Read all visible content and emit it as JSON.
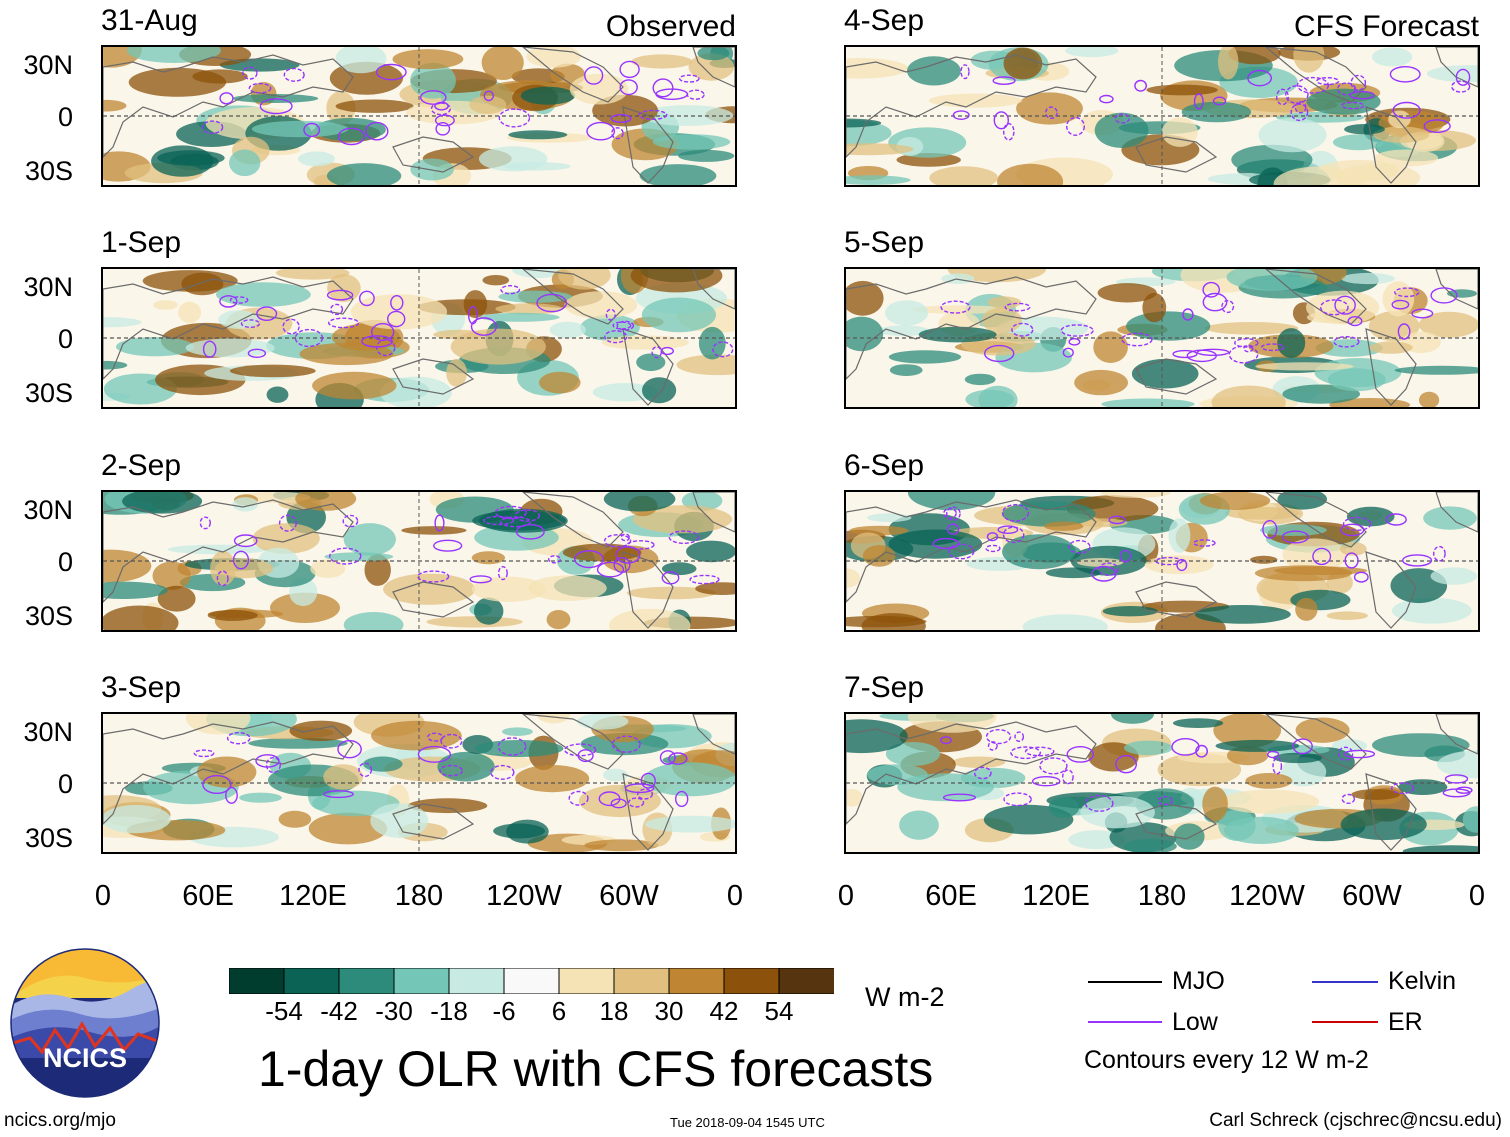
{
  "panels": [
    {
      "id": "p1",
      "title": "31-Aug",
      "tag": "Observed"
    },
    {
      "id": "p2",
      "title": "1-Sep",
      "tag": ""
    },
    {
      "id": "p3",
      "title": "2-Sep",
      "tag": ""
    },
    {
      "id": "p4",
      "title": "3-Sep",
      "tag": ""
    },
    {
      "id": "p5",
      "title": "4-Sep",
      "tag": "CFS Forecast"
    },
    {
      "id": "p6",
      "title": "5-Sep",
      "tag": ""
    },
    {
      "id": "p7",
      "title": "6-Sep",
      "tag": ""
    },
    {
      "id": "p8",
      "title": "7-Sep",
      "tag": ""
    }
  ],
  "lat_ticks": [
    "30N",
    "0",
    "30S"
  ],
  "lon_ticks": [
    "0",
    "60E",
    "120E",
    "180",
    "120W",
    "60W",
    "0"
  ],
  "colorbar": {
    "unit": "W m-2",
    "tick_labels": [
      "-54",
      "-42",
      "-30",
      "-18",
      "-6",
      "6",
      "18",
      "30",
      "42",
      "54"
    ],
    "colors": [
      "#003d2e",
      "#0a6355",
      "#2c8b7a",
      "#74c7b7",
      "#c7ebe3",
      "#f9f9f9",
      "#f6e3b5",
      "#e1c07f",
      "#bf8532",
      "#8c510a",
      "#55340f"
    ]
  },
  "legend": {
    "mjo": "MJO",
    "kelvin": "Kelvin",
    "low": "Low",
    "er": "ER",
    "contours": "Contours every 12 W m-2",
    "colors": {
      "mjo": "#000000",
      "kelvin": "#3333cc",
      "low": "#9933ff",
      "er": "#cc0000"
    }
  },
  "logo": {
    "text": "NCICS"
  },
  "main_title": "1-day OLR with CFS forecasts",
  "footer": {
    "url": "ncics.org/mjo",
    "timestamp": "Tue 2018-09-04 1545 UTC",
    "author": "Carl Schreck (cjschrec@ncsu.edu)"
  }
}
